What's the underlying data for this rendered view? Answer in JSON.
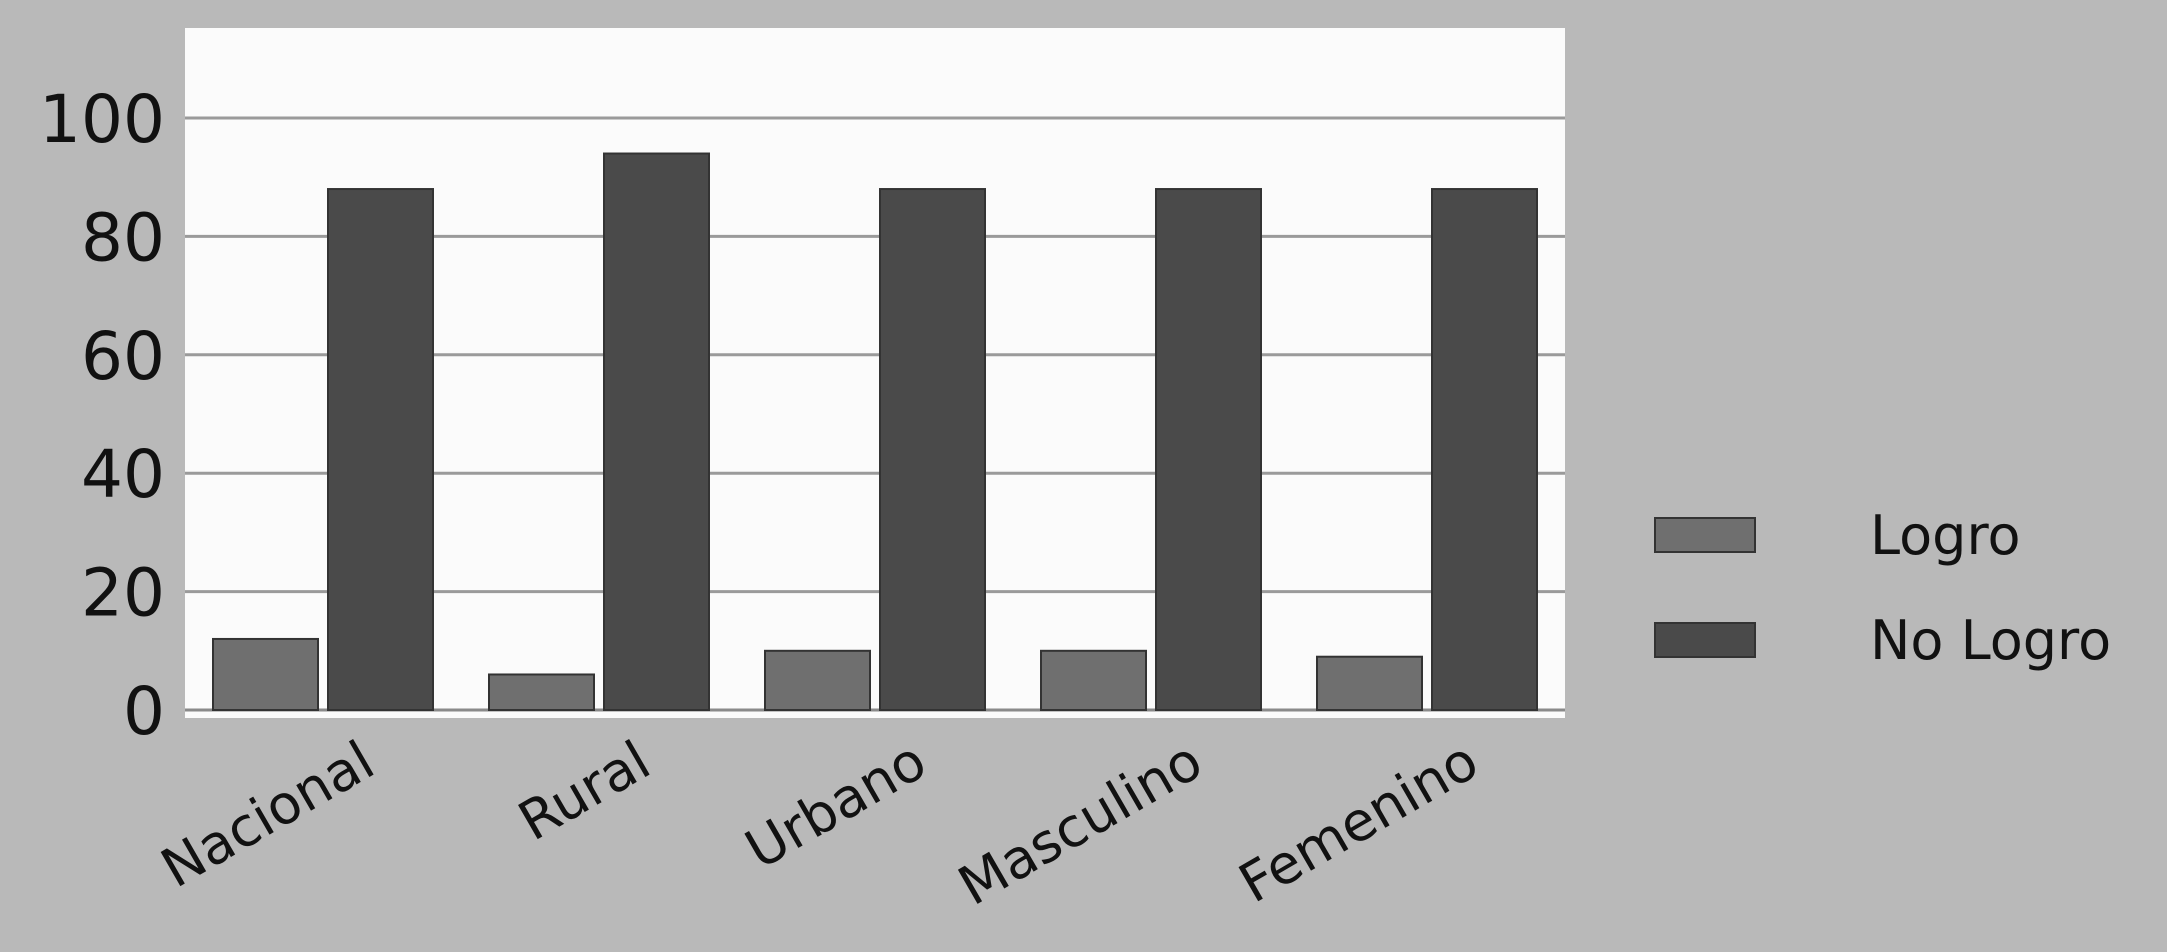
{
  "chart_data": {
    "type": "bar",
    "title": "",
    "xlabel": "",
    "ylabel": "",
    "categories": [
      "Nacional",
      "Rural",
      "Urbano",
      "Masculino",
      "Femenino"
    ],
    "series": [
      {
        "name": "Logro",
        "values": [
          12,
          6,
          10,
          10,
          9
        ],
        "color": "#6f6f6f"
      },
      {
        "name": "No Logro",
        "values": [
          88,
          94,
          88,
          88,
          88
        ],
        "color": "#4a4a4a"
      }
    ],
    "ylim": [
      0,
      100
    ],
    "yticks": [
      "0",
      "20",
      "40",
      "60",
      "80",
      "100"
    ],
    "grid": true,
    "legend": "right"
  }
}
